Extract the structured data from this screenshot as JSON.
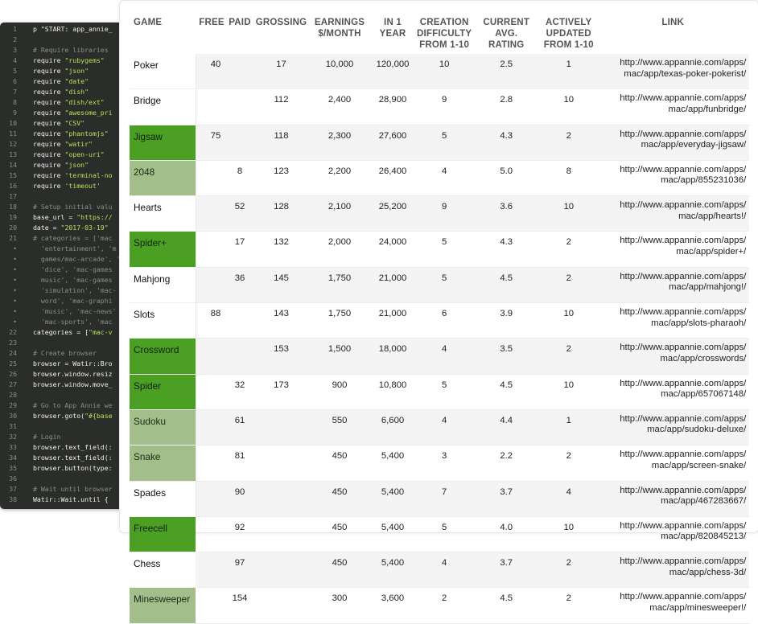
{
  "editor": {
    "lines": [
      {
        "n": "1",
        "parts": [
          [
            "p \"START: app_annie_",
            "w"
          ]
        ]
      },
      {
        "n": "2",
        "parts": []
      },
      {
        "n": "3",
        "parts": [
          [
            "# Require libraries",
            "c"
          ]
        ]
      },
      {
        "n": "4",
        "parts": [
          [
            "require ",
            "w"
          ],
          [
            "\"rubygems\"",
            "g"
          ]
        ]
      },
      {
        "n": "5",
        "parts": [
          [
            "require ",
            "w"
          ],
          [
            "\"json\"",
            "g"
          ]
        ]
      },
      {
        "n": "6",
        "parts": [
          [
            "require ",
            "w"
          ],
          [
            "\"date\"",
            "g"
          ]
        ]
      },
      {
        "n": "7",
        "parts": [
          [
            "require ",
            "w"
          ],
          [
            "\"dish\"",
            "g"
          ]
        ]
      },
      {
        "n": "8",
        "parts": [
          [
            "require ",
            "w"
          ],
          [
            "\"dish/ext\"",
            "g"
          ]
        ]
      },
      {
        "n": "9",
        "parts": [
          [
            "require ",
            "w"
          ],
          [
            "\"awesome_pri",
            "g"
          ]
        ]
      },
      {
        "n": "10",
        "parts": [
          [
            "require ",
            "w"
          ],
          [
            "\"CSV\"",
            "g"
          ]
        ]
      },
      {
        "n": "11",
        "parts": [
          [
            "require ",
            "w"
          ],
          [
            "\"phantomjs\"",
            "g"
          ]
        ]
      },
      {
        "n": "12",
        "parts": [
          [
            "require ",
            "w"
          ],
          [
            "\"watir\"",
            "g"
          ]
        ]
      },
      {
        "n": "13",
        "parts": [
          [
            "require ",
            "w"
          ],
          [
            "\"open-uri\"",
            "g"
          ]
        ]
      },
      {
        "n": "14",
        "parts": [
          [
            "require ",
            "w"
          ],
          [
            "\"json\"",
            "g"
          ]
        ]
      },
      {
        "n": "15",
        "parts": [
          [
            "require ",
            "w"
          ],
          [
            "'terminal-no",
            "g"
          ]
        ]
      },
      {
        "n": "16",
        "parts": [
          [
            "require ",
            "w"
          ],
          [
            "'timeout'",
            "g"
          ]
        ]
      },
      {
        "n": "17",
        "parts": []
      },
      {
        "n": "18",
        "parts": [
          [
            "# Setup initial valu",
            "c"
          ]
        ]
      },
      {
        "n": "19",
        "parts": [
          [
            "base_url = ",
            "w"
          ],
          [
            "\"https://",
            "g"
          ]
        ]
      },
      {
        "n": "20",
        "parts": [
          [
            "date = ",
            "w"
          ],
          [
            "\"2017-03-19\"",
            "g"
          ]
        ]
      },
      {
        "n": "21",
        "parts": [
          [
            "# categories = ['mac",
            "c"
          ]
        ]
      },
      {
        "n": "•",
        "parts": [
          [
            "  'entertainment', 'm",
            "c"
          ]
        ]
      },
      {
        "n": "•",
        "parts": [
          [
            "  games/mac-arcade', 'm",
            "c"
          ]
        ]
      },
      {
        "n": "•",
        "parts": [
          [
            "  'dice', 'mac-games",
            "c"
          ]
        ]
      },
      {
        "n": "•",
        "parts": [
          [
            "  music', 'mac-games",
            "c"
          ]
        ]
      },
      {
        "n": "•",
        "parts": [
          [
            "  'simulation', 'mac-",
            "c"
          ]
        ]
      },
      {
        "n": "•",
        "parts": [
          [
            "  word', 'mac-graphi",
            "c"
          ]
        ]
      },
      {
        "n": "•",
        "parts": [
          [
            "  'music', 'mac-news'",
            "c"
          ]
        ]
      },
      {
        "n": "•",
        "parts": [
          [
            "  'mac-sports', 'mac",
            "c"
          ]
        ]
      },
      {
        "n": "22",
        "parts": [
          [
            "categories = [",
            "w"
          ],
          [
            "\"mac-v",
            "g"
          ]
        ]
      },
      {
        "n": "23",
        "parts": []
      },
      {
        "n": "24",
        "parts": [
          [
            "# Create browser",
            "c"
          ]
        ]
      },
      {
        "n": "25",
        "parts": [
          [
            "browser = Watir::Bro",
            "w"
          ]
        ]
      },
      {
        "n": "26",
        "parts": [
          [
            "browser.window.resiz",
            "w"
          ]
        ]
      },
      {
        "n": "27",
        "parts": [
          [
            "browser.window.move_",
            "w"
          ]
        ]
      },
      {
        "n": "28",
        "parts": []
      },
      {
        "n": "29",
        "parts": [
          [
            "# Go to App Annie we",
            "c"
          ]
        ]
      },
      {
        "n": "30",
        "parts": [
          [
            "browser.goto(",
            "w"
          ],
          [
            "\"#{base",
            "g"
          ]
        ]
      },
      {
        "n": "31",
        "parts": []
      },
      {
        "n": "32",
        "parts": [
          [
            "# Login",
            "c"
          ]
        ]
      },
      {
        "n": "33",
        "parts": [
          [
            "browser.text_field(:",
            "w"
          ]
        ]
      },
      {
        "n": "34",
        "parts": [
          [
            "browser.text_field(:",
            "w"
          ]
        ]
      },
      {
        "n": "35",
        "parts": [
          [
            "browser.button(type:",
            "w"
          ]
        ]
      },
      {
        "n": "36",
        "parts": []
      },
      {
        "n": "37",
        "parts": [
          [
            "# Wait until browser",
            "c"
          ]
        ]
      },
      {
        "n": "38",
        "parts": [
          [
            "Watir::Wait.until { ",
            "w"
          ]
        ]
      }
    ]
  },
  "table": {
    "headers": {
      "game": "GAME",
      "free": "FREE",
      "paid": "PAID",
      "grossing": "GROSSING",
      "earnings": [
        "EARNINGS",
        "$/MONTH"
      ],
      "in1year": [
        "IN 1",
        "YEAR"
      ],
      "difficulty": [
        "CREATION",
        "DIFFICULTY",
        "FROM 1-10"
      ],
      "rating": [
        "CURRENT",
        "AVG.",
        "RATING"
      ],
      "updated": [
        "ACTIVELY",
        "UPDATED",
        "FROM 1-10"
      ],
      "link": "LINK"
    },
    "rows": [
      {
        "game": "Poker",
        "hl": "white",
        "free": "40",
        "paid": "",
        "grossing": "17",
        "earnings": "10,000",
        "year": "120,000",
        "difficulty": "10",
        "rating": "2.5",
        "updated": "1",
        "link": [
          "http://www.appannie.com/apps/",
          "mac/app/texas-poker-pokerist/"
        ]
      },
      {
        "game": "Bridge",
        "hl": "white",
        "free": "",
        "paid": "",
        "grossing": "112",
        "earnings": "2,400",
        "year": "28,900",
        "difficulty": "9",
        "rating": "2.8",
        "updated": "10",
        "link": [
          "http://www.appannie.com/apps/",
          "mac/app/funbridge/"
        ]
      },
      {
        "game": "Jigsaw",
        "hl": "dg",
        "free": "75",
        "paid": "",
        "grossing": "118",
        "earnings": "2,300",
        "year": "27,600",
        "difficulty": "5",
        "rating": "4.3",
        "updated": "2",
        "link": [
          "http://www.appannie.com/apps/",
          "mac/app/everyday-jigsaw/"
        ]
      },
      {
        "game": "2048",
        "hl": "lg",
        "free": "",
        "paid": "8",
        "grossing": "123",
        "earnings": "2,200",
        "year": "26,400",
        "difficulty": "4",
        "rating": "5.0",
        "updated": "8",
        "link": [
          "http://www.appannie.com/apps/",
          "mac/app/855231036/"
        ]
      },
      {
        "game": "Hearts",
        "hl": "white",
        "free": "",
        "paid": "52",
        "grossing": "128",
        "earnings": "2,100",
        "year": "25,200",
        "difficulty": "9",
        "rating": "3.6",
        "updated": "10",
        "link": [
          "http://www.appannie.com/apps/",
          "mac/app/hearts!/"
        ]
      },
      {
        "game": "Spider+",
        "hl": "dg",
        "free": "",
        "paid": "17",
        "grossing": "132",
        "earnings": "2,000",
        "year": "24,000",
        "difficulty": "5",
        "rating": "4.3",
        "updated": "2",
        "link": [
          "http://www.appannie.com/apps/",
          "mac/app/spider+/"
        ]
      },
      {
        "game": "Mahjong",
        "hl": "white",
        "free": "",
        "paid": "36",
        "grossing": "145",
        "earnings": "1,750",
        "year": "21,000",
        "difficulty": "5",
        "rating": "4.5",
        "updated": "2",
        "link": [
          "http://www.appannie.com/apps/",
          "mac/app/mahjong!/"
        ]
      },
      {
        "game": "Slots",
        "hl": "white",
        "free": "88",
        "paid": "",
        "grossing": "143",
        "earnings": "1,750",
        "year": "21,000",
        "difficulty": "6",
        "rating": "3.9",
        "updated": "10",
        "link": [
          "http://www.appannie.com/apps/",
          "mac/app/slots-pharaoh/"
        ]
      },
      {
        "game": "Crossword",
        "hl": "dg",
        "free": "",
        "paid": "",
        "grossing": "153",
        "earnings": "1,500",
        "year": "18,000",
        "difficulty": "4",
        "rating": "3.5",
        "updated": "2",
        "link": [
          "http://www.appannie.com/apps/",
          "mac/app/crosswords/"
        ]
      },
      {
        "game": "Spider",
        "hl": "dg",
        "free": "",
        "paid": "32",
        "grossing": "173",
        "earnings": "900",
        "year": "10,800",
        "difficulty": "5",
        "rating": "4.5",
        "updated": "10",
        "link": [
          "http://www.appannie.com/apps/",
          "mac/app/657067148/"
        ]
      },
      {
        "game": "Sudoku",
        "hl": "lg",
        "free": "",
        "paid": "61",
        "grossing": "",
        "earnings": "550",
        "year": "6,600",
        "difficulty": "4",
        "rating": "4.4",
        "updated": "1",
        "link": [
          "http://www.appannie.com/apps/",
          "mac/app/sudoku-deluxe/"
        ]
      },
      {
        "game": "Snake",
        "hl": "lg",
        "free": "",
        "paid": "81",
        "grossing": "",
        "earnings": "450",
        "year": "5,400",
        "difficulty": "3",
        "rating": "2.2",
        "updated": "2",
        "link": [
          "http://www.appannie.com/apps/",
          "mac/app/screen-snake/"
        ]
      },
      {
        "game": "Spades",
        "hl": "white",
        "free": "",
        "paid": "90",
        "grossing": "",
        "earnings": "450",
        "year": "5,400",
        "difficulty": "7",
        "rating": "3.7",
        "updated": "4",
        "link": [
          "http://www.appannie.com/apps/",
          "mac/app/467283667/"
        ]
      },
      {
        "game": "Freecell",
        "hl": "dg",
        "free": "",
        "paid": "92",
        "grossing": "",
        "earnings": "450",
        "year": "5,400",
        "difficulty": "5",
        "rating": "4.0",
        "updated": "10",
        "link": [
          "http://www.appannie.com/apps/",
          "mac/app/820845213/"
        ]
      },
      {
        "game": "Chess",
        "hl": "white",
        "free": "",
        "paid": "97",
        "grossing": "",
        "earnings": "450",
        "year": "5,400",
        "difficulty": "4",
        "rating": "3.7",
        "updated": "2",
        "link": [
          "http://www.appannie.com/apps/",
          "mac/app/chess-3d/"
        ]
      },
      {
        "game": "Minesweeper",
        "hl": "lg",
        "free": "",
        "paid": "154",
        "grossing": "",
        "earnings": "300",
        "year": "3,600",
        "difficulty": "2",
        "rating": "4.5",
        "updated": "2",
        "link": [
          "http://www.appannie.com/apps/",
          "mac/app/minesweeper!/"
        ]
      }
    ]
  }
}
